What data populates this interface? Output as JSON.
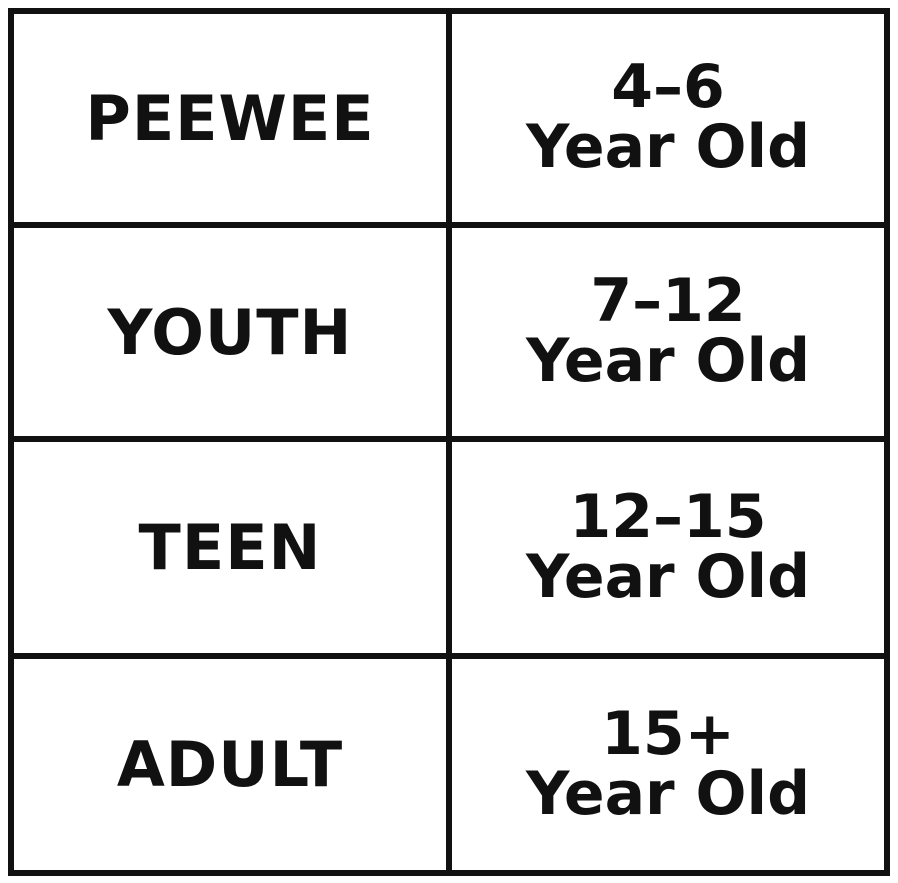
{
  "rows": [
    {
      "category": "PEEWEE",
      "range": "4–6",
      "unit": "Year Old"
    },
    {
      "category": "YOUTH",
      "range": "7–12",
      "unit": "Year Old"
    },
    {
      "category": "TEEN",
      "range": "12–15",
      "unit": "Year Old"
    },
    {
      "category": "ADULT",
      "range": "15+",
      "unit": "Year Old"
    }
  ]
}
